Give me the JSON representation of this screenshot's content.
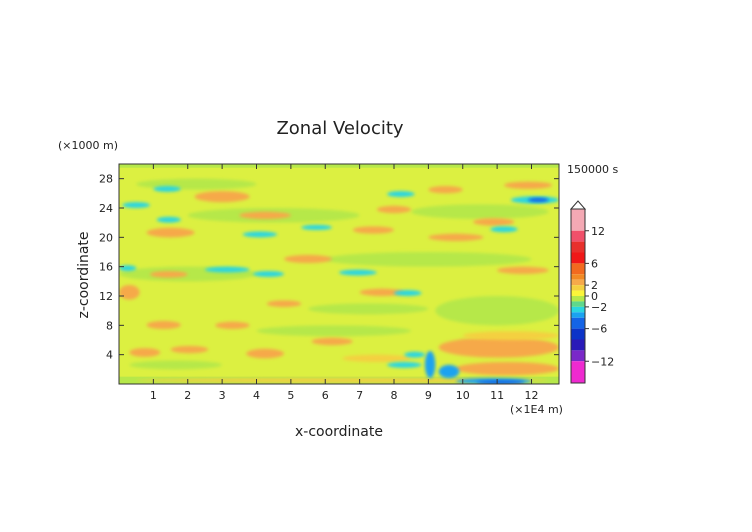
{
  "chart_data": {
    "type": "heatmap",
    "title": "Zonal Velocity",
    "xlabel": "x-coordinate",
    "ylabel": "z-coordinate",
    "x_unit": "(×1E4 m)",
    "y_unit": "(×1000 m)",
    "time_label": "150000 s",
    "xlim": [
      0,
      12.8
    ],
    "ylim": [
      0,
      30
    ],
    "x_ticks": [
      "1",
      "2",
      "3",
      "4",
      "5",
      "6",
      "7",
      "8",
      "9",
      "10",
      "11",
      "12"
    ],
    "y_ticks": [
      "4",
      "8",
      "12",
      "16",
      "20",
      "24",
      "28"
    ],
    "colorbar": {
      "ticks": [
        "12",
        "6",
        "2",
        "0",
        "−2",
        "−6",
        "−12"
      ],
      "levels": [
        {
          "from": 12,
          "to": 16,
          "color": "#f4a9b4"
        },
        {
          "from": 10,
          "to": 12,
          "color": "#f0506a"
        },
        {
          "from": 8,
          "to": 10,
          "color": "#e8302c"
        },
        {
          "from": 6,
          "to": 8,
          "color": "#f01818"
        },
        {
          "from": 4,
          "to": 6,
          "color": "#f26a1f"
        },
        {
          "from": 3,
          "to": 4,
          "color": "#f28a24"
        },
        {
          "from": 2,
          "to": 3,
          "color": "#f6a94a"
        },
        {
          "from": 1,
          "to": 2,
          "color": "#f4d040"
        },
        {
          "from": 0,
          "to": 1,
          "color": "#fbf53a"
        },
        {
          "from": -1,
          "to": 0,
          "color": "#b6e84a"
        },
        {
          "from": -2,
          "to": -1,
          "color": "#5fd88c"
        },
        {
          "from": -3,
          "to": -2,
          "color": "#2ad6e0"
        },
        {
          "from": -4,
          "to": -3,
          "color": "#1aa3f0"
        },
        {
          "from": -6,
          "to": -4,
          "color": "#1464e6"
        },
        {
          "from": -8,
          "to": -6,
          "color": "#0c34c8"
        },
        {
          "from": -10,
          "to": -8,
          "color": "#2a1ab8"
        },
        {
          "from": -12,
          "to": -10,
          "color": "#7a28c8"
        },
        {
          "from": -16,
          "to": -12,
          "color": "#ef2ad0"
        }
      ]
    },
    "colors": {
      "background": "#fbf53a",
      "near_zero": "#b6e84a",
      "positive_2": "#f6a94a",
      "positive_1": "#f4d040",
      "negative_2": "#2ad6e0",
      "negative_4": "#1aa3f0",
      "negative_6": "#1464e6"
    },
    "regions": [
      {
        "value": -0.5,
        "x": [
          0.0,
          12.8
        ],
        "z": [
          0.0,
          30.0
        ]
      },
      {
        "value": 0.5,
        "x": [
          0.0,
          12.8
        ],
        "z": [
          1.0,
          29.5
        ]
      },
      {
        "value": -0.5,
        "x": [
          0.3,
          3.0
        ],
        "z": [
          2.0,
          3.2
        ]
      },
      {
        "value": -0.5,
        "x": [
          4.0,
          8.5
        ],
        "z": [
          6.5,
          8.0
        ]
      },
      {
        "value": -0.5,
        "x": [
          9.2,
          12.8
        ],
        "z": [
          8.0,
          12.0
        ]
      },
      {
        "value": -0.5,
        "x": [
          0.0,
          4.0
        ],
        "z": [
          14.0,
          16.0
        ]
      },
      {
        "value": -0.5,
        "x": [
          5.5,
          9.0
        ],
        "z": [
          9.5,
          11.0
        ]
      },
      {
        "value": -0.5,
        "x": [
          6.0,
          12.0
        ],
        "z": [
          16.0,
          18.0
        ]
      },
      {
        "value": -0.5,
        "x": [
          2.0,
          7.0
        ],
        "z": [
          22.0,
          24.0
        ]
      },
      {
        "value": -0.5,
        "x": [
          8.5,
          12.5
        ],
        "z": [
          22.5,
          24.5
        ]
      },
      {
        "value": -0.5,
        "x": [
          0.5,
          4.0
        ],
        "z": [
          26.5,
          28.0
        ]
      },
      {
        "value": 2.5,
        "x": [
          0.3,
          1.2
        ],
        "z": [
          3.7,
          4.9
        ]
      },
      {
        "value": 2.5,
        "x": [
          1.5,
          2.6
        ],
        "z": [
          4.2,
          5.2
        ]
      },
      {
        "value": 2.5,
        "x": [
          3.7,
          4.8
        ],
        "z": [
          3.5,
          4.8
        ]
      },
      {
        "value": 2.5,
        "x": [
          0.0,
          0.6
        ],
        "z": [
          11.5,
          13.5
        ]
      },
      {
        "value": 2.5,
        "x": [
          0.8,
          1.8
        ],
        "z": [
          7.5,
          8.6
        ]
      },
      {
        "value": 2.5,
        "x": [
          4.3,
          5.3
        ],
        "z": [
          10.5,
          11.4
        ]
      },
      {
        "value": 2.5,
        "x": [
          0.9,
          2.0
        ],
        "z": [
          14.5,
          15.4
        ]
      },
      {
        "value": 2.5,
        "x": [
          4.8,
          6.2
        ],
        "z": [
          16.5,
          17.6
        ]
      },
      {
        "value": 2.5,
        "x": [
          0.8,
          2.2
        ],
        "z": [
          20.0,
          21.3
        ]
      },
      {
        "value": 2.5,
        "x": [
          2.2,
          3.8
        ],
        "z": [
          24.8,
          26.3
        ]
      },
      {
        "value": 2.5,
        "x": [
          3.5,
          5.0
        ],
        "z": [
          22.5,
          23.5
        ]
      },
      {
        "value": 2.5,
        "x": [
          6.8,
          8.0
        ],
        "z": [
          20.5,
          21.5
        ]
      },
      {
        "value": 2.5,
        "x": [
          7.5,
          8.5
        ],
        "z": [
          23.3,
          24.3
        ]
      },
      {
        "value": 2.5,
        "x": [
          9.0,
          10.0
        ],
        "z": [
          26.0,
          27.0
        ]
      },
      {
        "value": 2.5,
        "x": [
          11.2,
          12.6
        ],
        "z": [
          26.6,
          27.6
        ]
      },
      {
        "value": 2.5,
        "x": [
          9.0,
          10.6
        ],
        "z": [
          19.5,
          20.5
        ]
      },
      {
        "value": 2.5,
        "x": [
          10.3,
          11.5
        ],
        "z": [
          21.6,
          22.6
        ]
      },
      {
        "value": 2.5,
        "x": [
          11.0,
          12.5
        ],
        "z": [
          15.0,
          16.0
        ]
      },
      {
        "value": 2.5,
        "x": [
          7.0,
          8.3
        ],
        "z": [
          12.0,
          13.0
        ]
      },
      {
        "value": 2.5,
        "x": [
          5.6,
          6.8
        ],
        "z": [
          5.3,
          6.3
        ]
      },
      {
        "value": 2.5,
        "x": [
          2.8,
          3.8
        ],
        "z": [
          7.5,
          8.5
        ]
      },
      {
        "value": 2.5,
        "x": [
          9.3,
          12.8
        ],
        "z": [
          3.6,
          6.4
        ]
      },
      {
        "value": 2.5,
        "x": [
          9.8,
          12.8
        ],
        "z": [
          1.2,
          3.0
        ]
      },
      {
        "value": 1.5,
        "x": [
          10.0,
          12.8
        ],
        "z": [
          6.0,
          7.2
        ]
      },
      {
        "value": 1.5,
        "x": [
          0.5,
          12.5
        ],
        "z": [
          0.2,
          0.8
        ]
      },
      {
        "value": 1.5,
        "x": [
          6.5,
          8.5
        ],
        "z": [
          3.0,
          4.0
        ]
      },
      {
        "value": -2.5,
        "x": [
          0.1,
          0.9
        ],
        "z": [
          24.0,
          24.8
        ]
      },
      {
        "value": -2.5,
        "x": [
          1.1,
          1.8
        ],
        "z": [
          22.0,
          22.8
        ]
      },
      {
        "value": -2.5,
        "x": [
          3.6,
          4.6
        ],
        "z": [
          20.0,
          20.8
        ]
      },
      {
        "value": -2.5,
        "x": [
          5.3,
          6.2
        ],
        "z": [
          21.0,
          21.7
        ]
      },
      {
        "value": -2.5,
        "x": [
          2.5,
          3.8
        ],
        "z": [
          15.2,
          16.0
        ]
      },
      {
        "value": -2.5,
        "x": [
          3.9,
          4.8
        ],
        "z": [
          14.6,
          15.4
        ]
      },
      {
        "value": -2.5,
        "x": [
          6.4,
          7.5
        ],
        "z": [
          14.8,
          15.6
        ]
      },
      {
        "value": -2.5,
        "x": [
          8.0,
          8.8
        ],
        "z": [
          12.0,
          12.8
        ]
      },
      {
        "value": -2.5,
        "x": [
          7.8,
          8.6
        ],
        "z": [
          25.5,
          26.3
        ]
      },
      {
        "value": -2.5,
        "x": [
          1.0,
          1.8
        ],
        "z": [
          26.2,
          27.0
        ]
      },
      {
        "value": -2.5,
        "x": [
          0.0,
          0.5
        ],
        "z": [
          15.4,
          16.2
        ]
      },
      {
        "value": -2.5,
        "x": [
          10.8,
          11.6
        ],
        "z": [
          20.7,
          21.5
        ]
      },
      {
        "value": -2.5,
        "x": [
          11.4,
          12.8
        ],
        "z": [
          24.6,
          25.6
        ]
      },
      {
        "value": -2.5,
        "x": [
          7.8,
          8.8
        ],
        "z": [
          2.2,
          3.0
        ]
      },
      {
        "value": -2.5,
        "x": [
          8.3,
          8.9
        ],
        "z": [
          3.6,
          4.4
        ]
      },
      {
        "value": -3.5,
        "x": [
          9.8,
          12.0
        ],
        "z": [
          0.0,
          0.8
        ]
      },
      {
        "value": -3.5,
        "x": [
          8.9,
          9.2
        ],
        "z": [
          0.8,
          4.5
        ]
      },
      {
        "value": -3.5,
        "x": [
          9.3,
          9.9
        ],
        "z": [
          0.8,
          2.6
        ]
      },
      {
        "value": -5.0,
        "x": [
          10.4,
          11.8
        ],
        "z": [
          0.0,
          0.5
        ]
      },
      {
        "value": -5.0,
        "x": [
          11.9,
          12.5
        ],
        "z": [
          24.8,
          25.4
        ]
      }
    ]
  }
}
